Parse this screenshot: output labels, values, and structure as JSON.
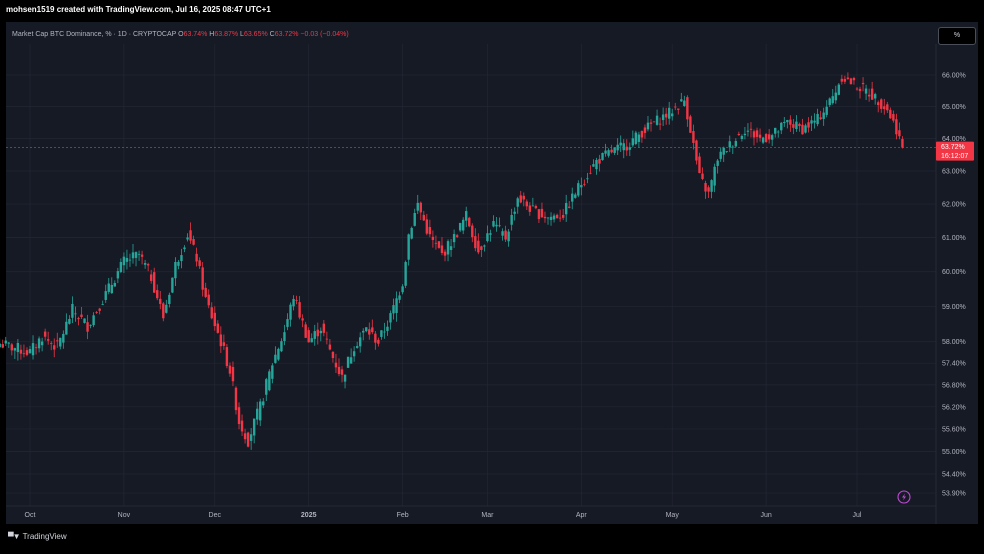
{
  "header": {
    "credit": "mohsen1519 created with TradingView.com, Jul 16, 2025 08:47 UTC+1"
  },
  "legend": {
    "symbol": "Market Cap BTC Dominance, % · 1D · CRYPTOCAP",
    "o_label": "O",
    "o_value": "63.74%",
    "h_label": "H",
    "h_value": "63.87%",
    "l_label": "L",
    "l_value": "63.65%",
    "c_label": "C",
    "c_value": "63.72%",
    "change": "−0.03 (−0.04%)"
  },
  "scale_button": {
    "label": "%"
  },
  "price_tag": {
    "value": "63.72%",
    "countdown": "16:12:07"
  },
  "footer": {
    "brand": "TradingView"
  },
  "colors": {
    "up": "#26a69a",
    "down": "#f23645",
    "background": "#161a25",
    "grid": "#232733"
  },
  "chart_data": {
    "type": "candlestick",
    "title": "Market Cap BTC Dominance, % · 1D · CRYPTOCAP",
    "x_ticks": [
      "Oct",
      "Nov",
      "Dec",
      "2025",
      "Feb",
      "Mar",
      "Apr",
      "May",
      "Jun",
      "Jul"
    ],
    "y_ticks": [
      "66.00%",
      "65.00%",
      "64.00%",
      "63.00%",
      "62.00%",
      "61.00%",
      "60.00%",
      "59.00%",
      "58.00%",
      "57.40%",
      "56.80%",
      "56.20%",
      "55.60%",
      "55.00%",
      "54.40%",
      "53.90%"
    ],
    "last_price": 63.72,
    "close_path": [
      {
        "date": "2024-09-21",
        "close": 57.95
      },
      {
        "date": "2024-10-01",
        "close": 57.7
      },
      {
        "date": "2024-10-05",
        "close": 58.15
      },
      {
        "date": "2024-10-10",
        "close": 57.85
      },
      {
        "date": "2024-10-15",
        "close": 58.9
      },
      {
        "date": "2024-10-20",
        "close": 58.45
      },
      {
        "date": "2024-10-26",
        "close": 59.35
      },
      {
        "date": "2024-11-01",
        "close": 60.3
      },
      {
        "date": "2024-11-06",
        "close": 60.5
      },
      {
        "date": "2024-11-10",
        "close": 59.85
      },
      {
        "date": "2024-11-14",
        "close": 58.7
      },
      {
        "date": "2024-11-18",
        "close": 60.2
      },
      {
        "date": "2024-11-22",
        "close": 61.1
      },
      {
        "date": "2024-11-25",
        "close": 60.4
      },
      {
        "date": "2024-11-28",
        "close": 59.2
      },
      {
        "date": "2024-12-03",
        "close": 58.0
      },
      {
        "date": "2024-12-06",
        "close": 57.2
      },
      {
        "date": "2024-12-09",
        "close": 55.8
      },
      {
        "date": "2024-12-12",
        "close": 55.3
      },
      {
        "date": "2024-12-16",
        "close": 56.2
      },
      {
        "date": "2024-12-20",
        "close": 57.4
      },
      {
        "date": "2024-12-24",
        "close": 58.3
      },
      {
        "date": "2024-12-27",
        "close": 59.3
      },
      {
        "date": "2025-01-01",
        "close": 58.0
      },
      {
        "date": "2025-01-05",
        "close": 58.4
      },
      {
        "date": "2025-01-08",
        "close": 57.75
      },
      {
        "date": "2025-01-12",
        "close": 57.0
      },
      {
        "date": "2025-01-16",
        "close": 57.9
      },
      {
        "date": "2025-01-20",
        "close": 58.35
      },
      {
        "date": "2025-01-24",
        "close": 58.0
      },
      {
        "date": "2025-01-28",
        "close": 58.7
      },
      {
        "date": "2025-02-01",
        "close": 59.7
      },
      {
        "date": "2025-02-03",
        "close": 61.1
      },
      {
        "date": "2025-02-06",
        "close": 62.0
      },
      {
        "date": "2025-02-10",
        "close": 61.0
      },
      {
        "date": "2025-02-14",
        "close": 60.5
      },
      {
        "date": "2025-02-18",
        "close": 61.0
      },
      {
        "date": "2025-02-22",
        "close": 61.65
      },
      {
        "date": "2025-02-26",
        "close": 60.6
      },
      {
        "date": "2025-03-03",
        "close": 61.4
      },
      {
        "date": "2025-03-07",
        "close": 61.0
      },
      {
        "date": "2025-03-11",
        "close": 62.2
      },
      {
        "date": "2025-03-16",
        "close": 61.8
      },
      {
        "date": "2025-03-21",
        "close": 61.6
      },
      {
        "date": "2025-03-26",
        "close": 61.7
      },
      {
        "date": "2025-03-31",
        "close": 62.5
      },
      {
        "date": "2025-04-06",
        "close": 63.3
      },
      {
        "date": "2025-04-11",
        "close": 63.6
      },
      {
        "date": "2025-04-16",
        "close": 63.8
      },
      {
        "date": "2025-04-21",
        "close": 64.2
      },
      {
        "date": "2025-04-25",
        "close": 64.5
      },
      {
        "date": "2025-04-30",
        "close": 64.8
      },
      {
        "date": "2025-05-05",
        "close": 65.2
      },
      {
        "date": "2025-05-07",
        "close": 64.3
      },
      {
        "date": "2025-05-10",
        "close": 62.8
      },
      {
        "date": "2025-05-13",
        "close": 62.3
      },
      {
        "date": "2025-05-16",
        "close": 63.4
      },
      {
        "date": "2025-05-20",
        "close": 63.8
      },
      {
        "date": "2025-05-25",
        "close": 64.3
      },
      {
        "date": "2025-05-30",
        "close": 64.0
      },
      {
        "date": "2025-06-03",
        "close": 64.1
      },
      {
        "date": "2025-06-08",
        "close": 64.5
      },
      {
        "date": "2025-06-13",
        "close": 64.3
      },
      {
        "date": "2025-06-18",
        "close": 64.6
      },
      {
        "date": "2025-06-23",
        "close": 65.3
      },
      {
        "date": "2025-06-26",
        "close": 65.95
      },
      {
        "date": "2025-06-30",
        "close": 65.7
      },
      {
        "date": "2025-07-04",
        "close": 65.5
      },
      {
        "date": "2025-07-08",
        "close": 65.2
      },
      {
        "date": "2025-07-11",
        "close": 64.9
      },
      {
        "date": "2025-07-14",
        "close": 64.3
      },
      {
        "date": "2025-07-16",
        "close": 63.72
      }
    ]
  }
}
